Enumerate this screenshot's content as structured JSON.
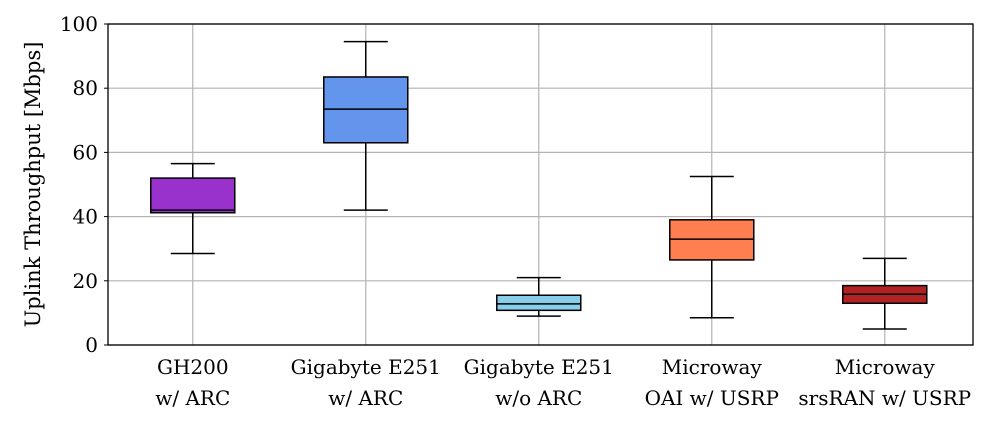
{
  "chart_data": {
    "type": "boxplot",
    "ylabel": "Uplink Throughput [Mbps]",
    "ylim": [
      0,
      100
    ],
    "yticks": [
      0,
      20,
      40,
      60,
      80,
      100
    ],
    "grid": true,
    "categories": [
      {
        "lines": [
          "GH200",
          "w/ ARC"
        ],
        "min": 28.5,
        "q1": 41.2,
        "median": 42.0,
        "q3": 52.0,
        "max": 56.5,
        "color": "#9932CC"
      },
      {
        "lines": [
          "Gigabyte E251",
          "w/ ARC"
        ],
        "min": 42.0,
        "q1": 63.0,
        "median": 73.5,
        "q3": 83.5,
        "max": 94.5,
        "color": "#6495ED"
      },
      {
        "lines": [
          "Gigabyte E251",
          "w/o ARC"
        ],
        "min": 9.0,
        "q1": 10.8,
        "median": 12.8,
        "q3": 15.5,
        "max": 21.0,
        "color": "#87CEEB"
      },
      {
        "lines": [
          "Microway",
          "OAI w/ USRP"
        ],
        "min": 8.5,
        "q1": 26.5,
        "median": 33.0,
        "q3": 39.0,
        "max": 52.5,
        "color": "#FF7F50"
      },
      {
        "lines": [
          "Microway",
          "srsRAN w/ USRP"
        ],
        "min": 5.0,
        "q1": 13.0,
        "median": 15.8,
        "q3": 18.5,
        "max": 27.0,
        "color": "#B22222"
      }
    ]
  }
}
